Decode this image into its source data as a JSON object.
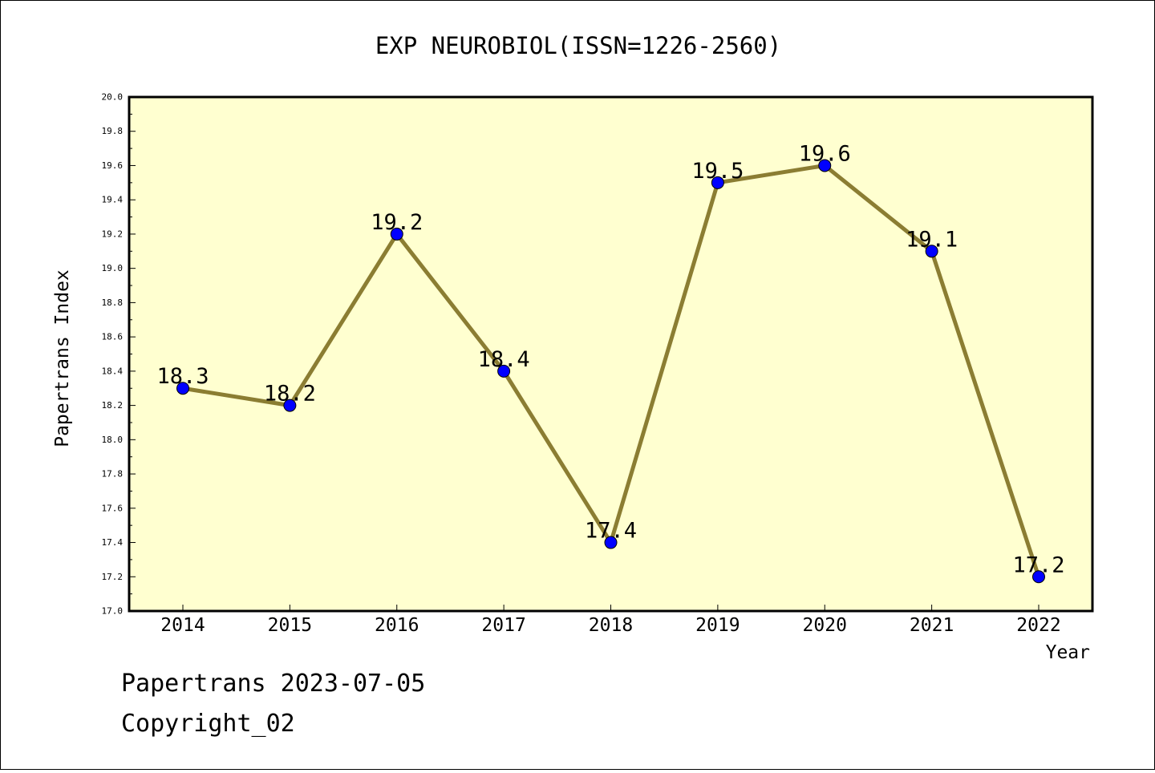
{
  "chart_data": {
    "type": "line",
    "title": "EXP NEUROBIOL(ISSN=1226-2560)",
    "xlabel": "Year",
    "ylabel": "Papertrans Index",
    "categories": [
      "2014",
      "2015",
      "2016",
      "2017",
      "2018",
      "2019",
      "2020",
      "2021",
      "2022"
    ],
    "series": [
      {
        "values": [
          18.3,
          18.2,
          19.2,
          18.4,
          17.4,
          19.5,
          19.6,
          19.1,
          17.2
        ],
        "labels": [
          "18.3",
          "18.2",
          "19.2",
          "18.4",
          "17.4",
          "19.5",
          "19.6",
          "19.1",
          "17.2"
        ]
      }
    ],
    "ylim": [
      17.0,
      20.0
    ],
    "yticks": [
      "17.0",
      "17.2",
      "17.4",
      "17.6",
      "17.8",
      "18.0",
      "18.2",
      "18.4",
      "18.6",
      "18.8",
      "19.0",
      "19.2",
      "19.4",
      "19.6",
      "19.8",
      "20.0"
    ],
    "grid": false,
    "colors": {
      "plot_background": "#ffffd0",
      "line": "#8b7d32",
      "marker": "#0000ff"
    }
  },
  "footer": {
    "date_line": "Papertrans 2023-07-05",
    "copyright_line": "Copyright_02"
  }
}
